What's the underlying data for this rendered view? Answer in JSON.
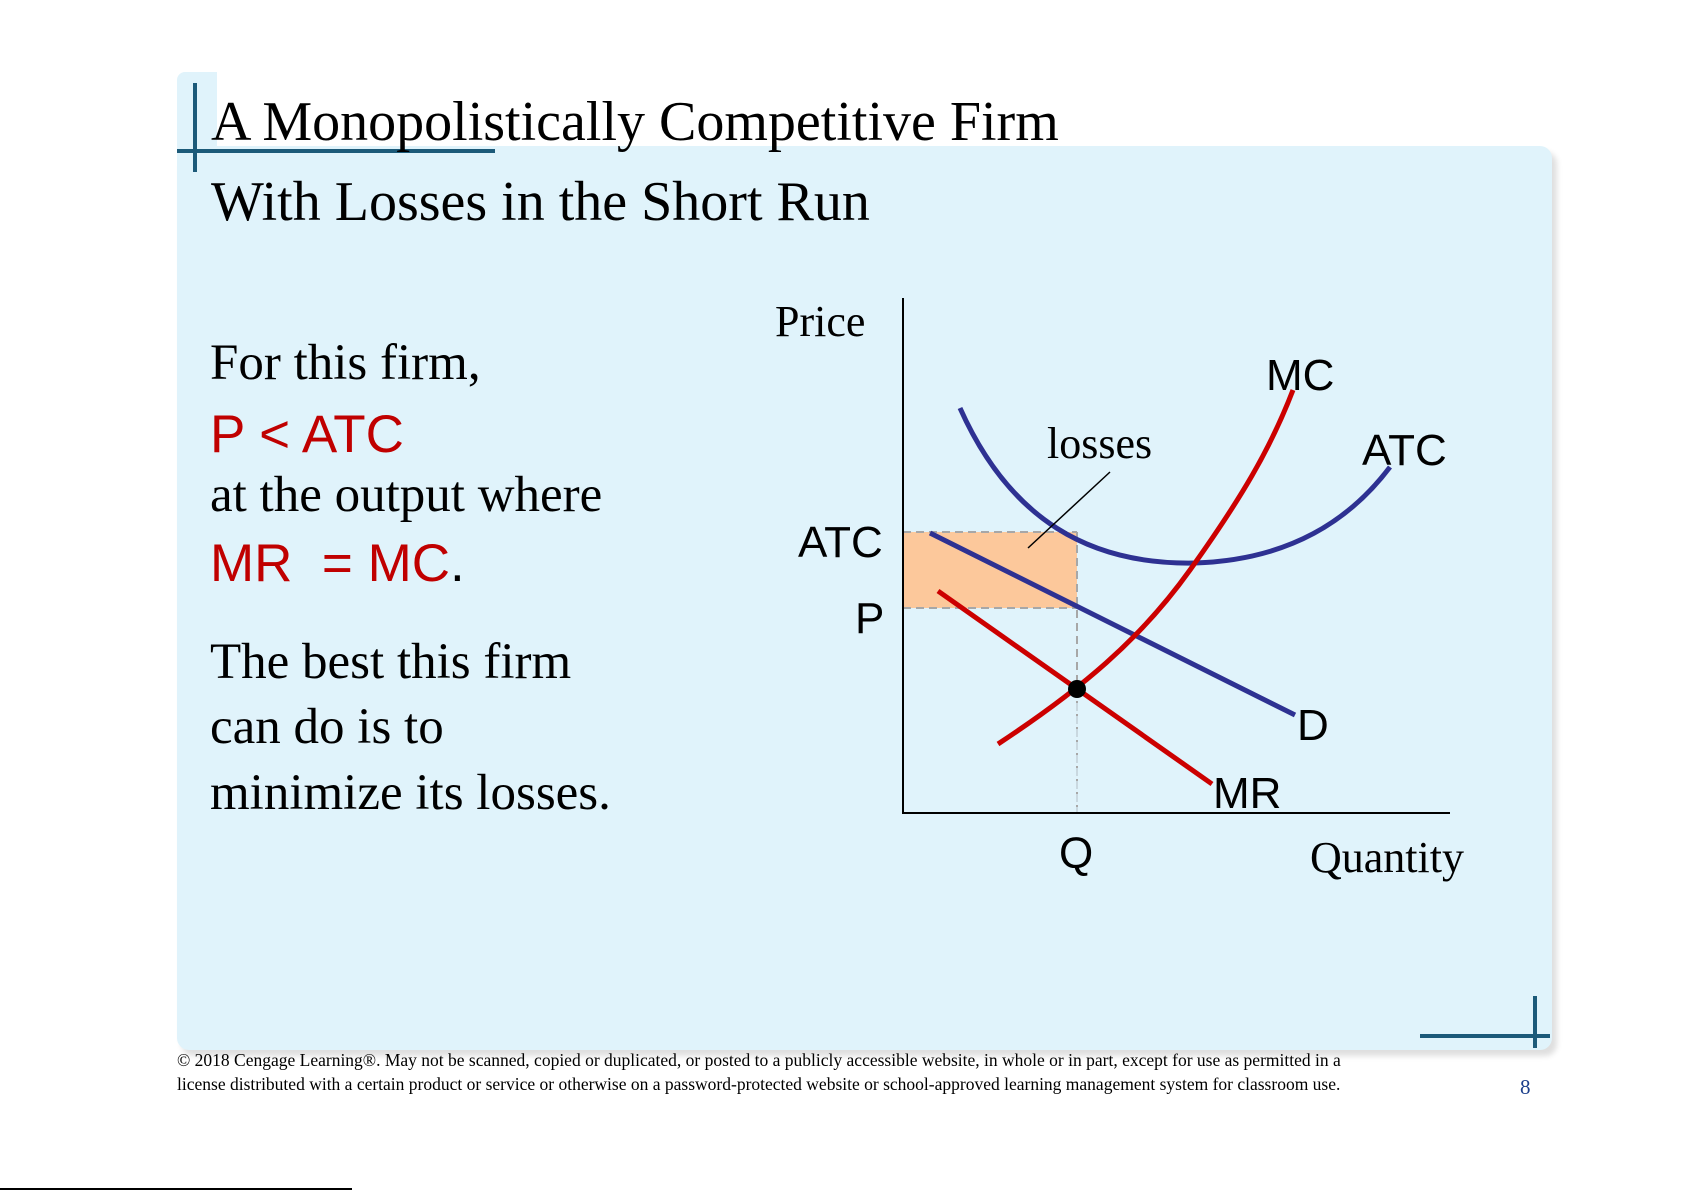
{
  "slide": {
    "title_line1": "A Monopolistically Competitive Firm",
    "title_line2": "With Losses in the Short Run",
    "text": {
      "line1": "For this firm,",
      "line2": "P < ATC",
      "line3": "at the output where",
      "line4_mr": "MR",
      "line4_eq": "= MC",
      "line4_period": ".",
      "line5": "The best this firm",
      "line6": "can do is to",
      "line7": "minimize its losses."
    },
    "footer": "© 2018 Cengage Learning®. May not be scanned, copied or duplicated, or posted to a publicly accessible website, in whole or in part, except for use as permitted in a license distributed with a certain product or service or otherwise on a password-protected website or school-approved learning management system for classroom use.",
    "page_number": "8"
  },
  "graph": {
    "y_axis_label": "Price",
    "x_axis_label": "Quantity",
    "y_tick_atc": "ATC",
    "y_tick_p": "P",
    "x_tick_q": "Q",
    "losses_label": "losses",
    "curve_labels": {
      "mc": "MC",
      "atc": "ATC",
      "d": "D",
      "mr": "MR"
    }
  },
  "colors": {
    "panel": "#e0f3fb",
    "accent_rule": "#1c5a79",
    "red_curve": "#cc0000",
    "blue_curve": "#2e3192",
    "loss_fill": "#fcc89b",
    "red_text": "#c00000"
  }
}
